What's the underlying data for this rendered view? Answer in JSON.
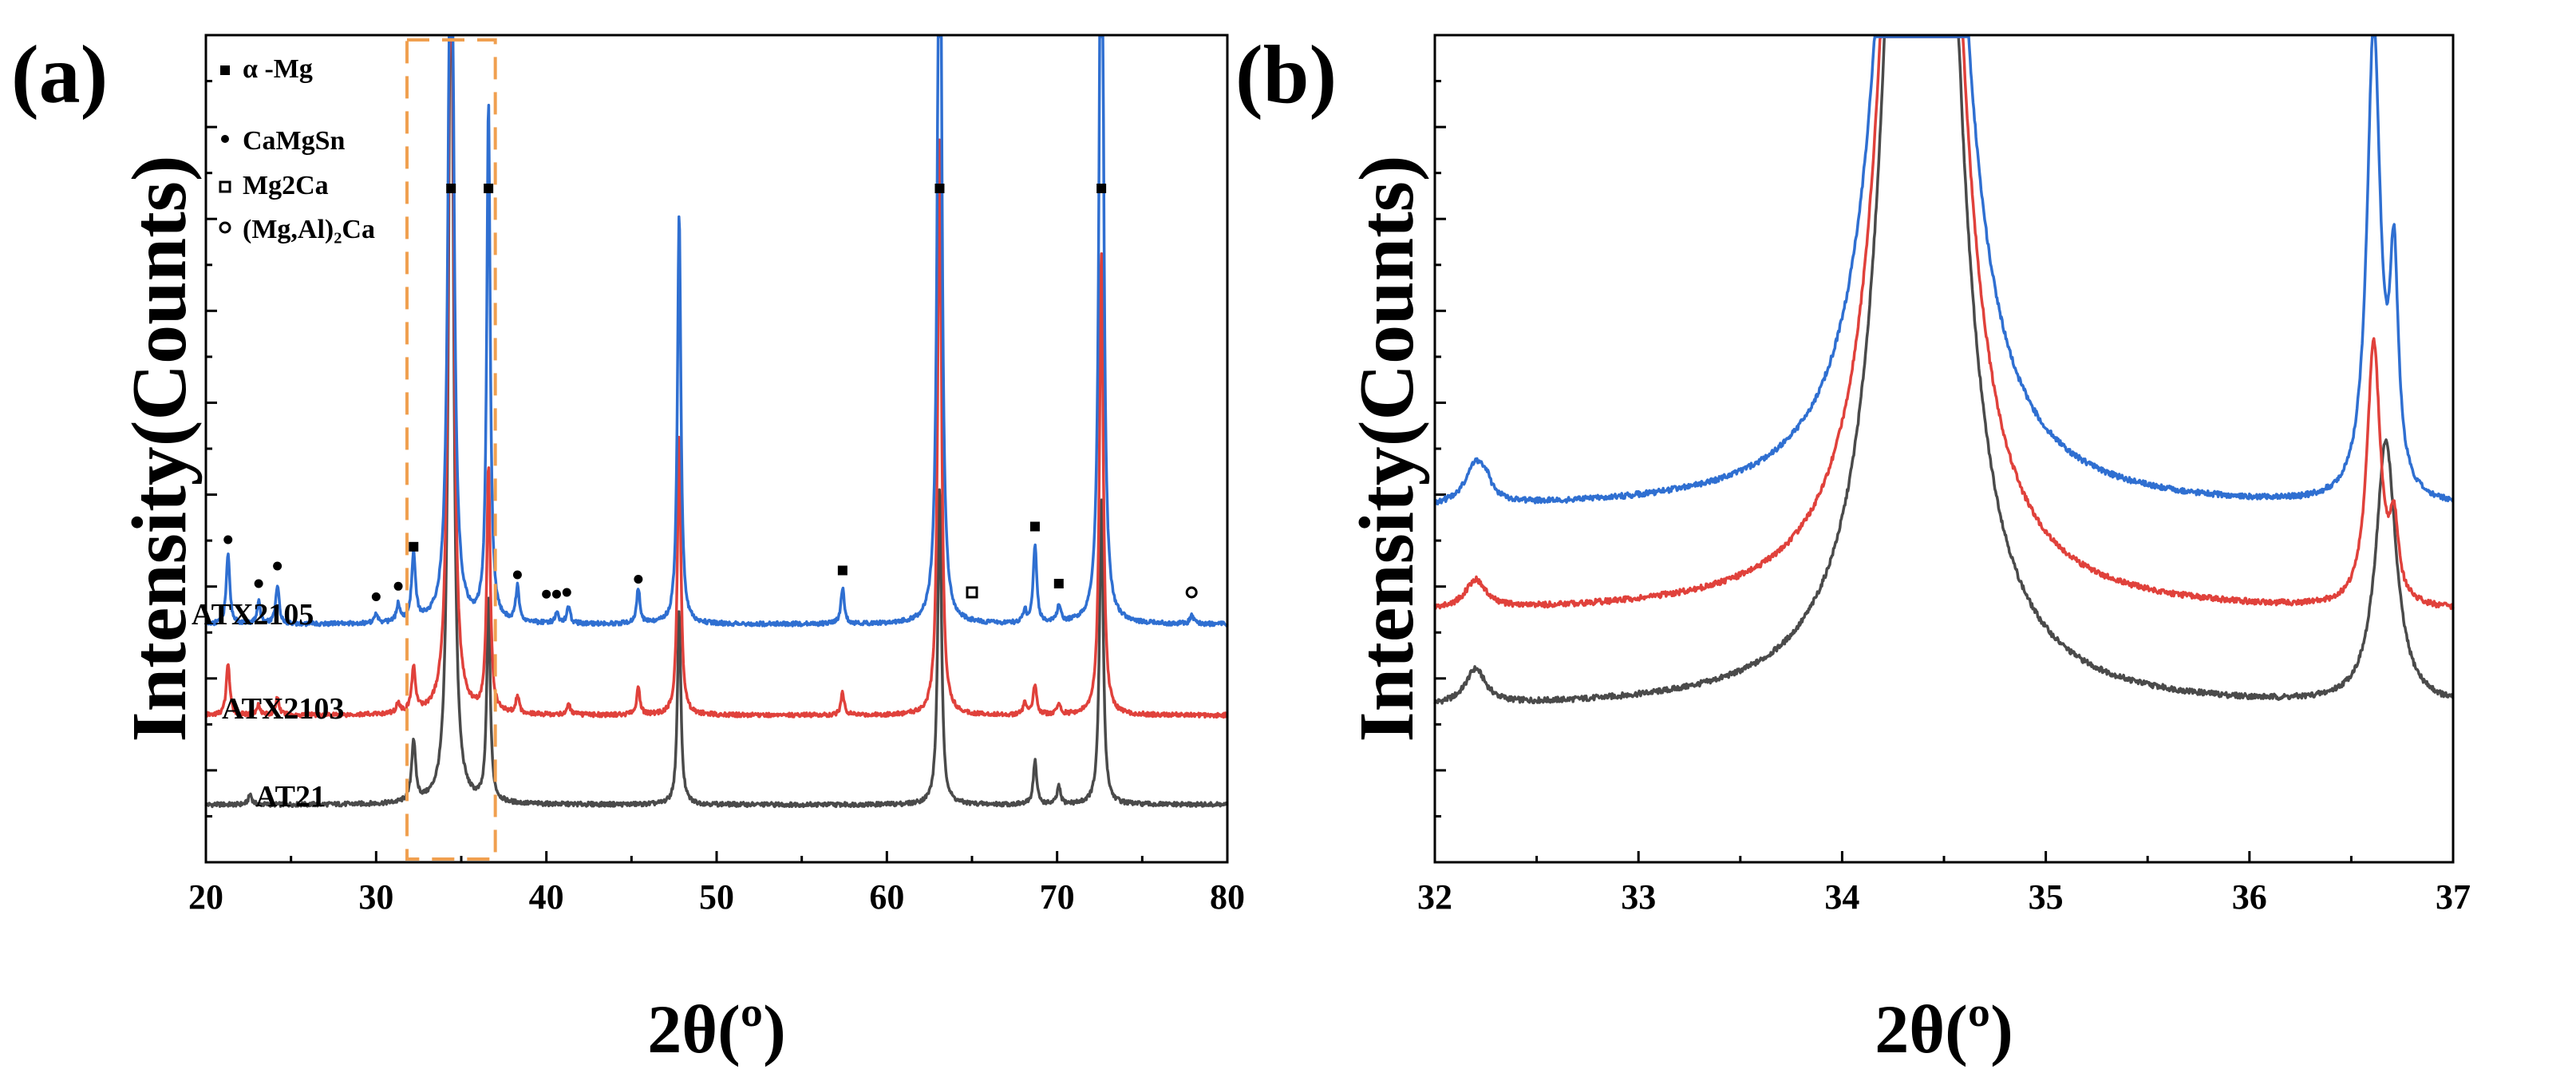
{
  "colors": {
    "AT21": "#4a4a4a",
    "ATX2103": "#e0413b",
    "ATX2105": "#2f6fd1",
    "highlight_box": "#f0a050",
    "marker": "#000000"
  },
  "chart_data": [
    {
      "id": "panel-a",
      "panel_label": "(a)",
      "type": "line",
      "xlabel": "2θ(º)",
      "ylabel": "Intensity(Counts)",
      "xlim": [
        20,
        80
      ],
      "xticks": [
        "20",
        "30",
        "40",
        "50",
        "60",
        "70",
        "80"
      ],
      "yticks_visible_labels": false,
      "legend": {
        "placement": "top-left",
        "entries": [
          {
            "marker": "filled-square",
            "label": "α -Mg"
          },
          {
            "marker": "filled-circle",
            "label": "CaMgSn"
          },
          {
            "marker": "open-square",
            "label": "Mg2Ca"
          },
          {
            "marker": "open-circle",
            "label": "(Mg,Al)₂Ca"
          }
        ]
      },
      "series": [
        {
          "name": "AT21",
          "label": "AT21",
          "color_key": "AT21",
          "offset": 0
        },
        {
          "name": "ATX2103",
          "label": "ATX2103",
          "color_key": "ATX2103",
          "offset": 1
        },
        {
          "name": "ATX2105",
          "label": "ATX2105",
          "color_key": "ATX2105",
          "offset": 2
        }
      ],
      "peaks": [
        {
          "x": 21.3,
          "h": [
            0,
            0.6,
            0.8
          ],
          "w": 0.12
        },
        {
          "x": 22.6,
          "h": [
            0.12,
            0,
            0
          ],
          "w": 0.12
        },
        {
          "x": 23.1,
          "h": [
            0,
            0.12,
            0.25
          ],
          "w": 0.12
        },
        {
          "x": 24.2,
          "h": [
            0,
            0.2,
            0.45
          ],
          "w": 0.12
        },
        {
          "x": 30.0,
          "h": [
            0,
            0,
            0.1
          ],
          "w": 0.12
        },
        {
          "x": 31.3,
          "h": [
            0,
            0.12,
            0.2
          ],
          "w": 0.12
        },
        {
          "x": 32.2,
          "h": [
            0.7,
            0.5,
            0.75
          ],
          "w": 0.14
        },
        {
          "x": 34.4,
          "h": [
            11,
            11,
            11
          ],
          "w": 0.16
        },
        {
          "x": 36.6,
          "h": [
            2.3,
            2.8,
            5.9
          ],
          "w": 0.12
        },
        {
          "x": 38.3,
          "h": [
            0,
            0.2,
            0.4
          ],
          "w": 0.12
        },
        {
          "x": 40.6,
          "h": [
            0,
            0,
            0.12
          ],
          "w": 0.12
        },
        {
          "x": 41.3,
          "h": [
            0,
            0.12,
            0.18
          ],
          "w": 0.12
        },
        {
          "x": 45.4,
          "h": [
            0,
            0.3,
            0.4
          ],
          "w": 0.12
        },
        {
          "x": 47.8,
          "h": [
            2.2,
            3.2,
            4.7
          ],
          "w": 0.12
        },
        {
          "x": 57.4,
          "h": [
            0,
            0.25,
            0.4
          ],
          "w": 0.12
        },
        {
          "x": 63.1,
          "h": [
            3.6,
            6.6,
            11
          ],
          "w": 0.13
        },
        {
          "x": 68.1,
          "h": [
            0,
            0.15,
            0.15
          ],
          "w": 0.1
        },
        {
          "x": 68.7,
          "h": [
            0.5,
            0.35,
            0.9
          ],
          "w": 0.12
        },
        {
          "x": 70.1,
          "h": [
            0.2,
            0.12,
            0.2
          ],
          "w": 0.12
        },
        {
          "x": 72.6,
          "h": [
            3.5,
            5.3,
            11
          ],
          "w": 0.13
        },
        {
          "x": 77.9,
          "h": [
            0,
            0,
            0.1
          ],
          "w": 0.12
        }
      ],
      "phase_markers": [
        {
          "x": 21.3,
          "symbol": "filled-circle",
          "level": 0.8
        },
        {
          "x": 23.1,
          "symbol": "filled-circle",
          "level": 0.3
        },
        {
          "x": 24.2,
          "symbol": "filled-circle",
          "level": 0.5
        },
        {
          "x": 30.0,
          "symbol": "filled-circle",
          "level": 0.15
        },
        {
          "x": 31.3,
          "symbol": "filled-circle",
          "level": 0.27
        },
        {
          "x": 32.2,
          "symbol": "filled-square",
          "level": 0.72
        },
        {
          "x": 34.4,
          "symbol": "filled-square",
          "level": 4.8
        },
        {
          "x": 36.6,
          "symbol": "filled-square",
          "level": 4.8
        },
        {
          "x": 38.3,
          "symbol": "filled-circle",
          "level": 0.4
        },
        {
          "x": 40.0,
          "symbol": "filled-circle",
          "level": 0.18
        },
        {
          "x": 40.6,
          "symbol": "filled-circle",
          "level": 0.18
        },
        {
          "x": 41.2,
          "symbol": "filled-circle",
          "level": 0.2
        },
        {
          "x": 45.4,
          "symbol": "filled-circle",
          "level": 0.35
        },
        {
          "x": 57.4,
          "symbol": "filled-square",
          "level": 0.45
        },
        {
          "x": 63.1,
          "symbol": "filled-square",
          "level": 4.8
        },
        {
          "x": 65.0,
          "symbol": "open-square",
          "level": 0.2
        },
        {
          "x": 68.7,
          "symbol": "filled-square",
          "level": 0.95
        },
        {
          "x": 70.1,
          "symbol": "filled-square",
          "level": 0.3
        },
        {
          "x": 72.6,
          "symbol": "filled-square",
          "level": 4.8
        },
        {
          "x": 77.9,
          "symbol": "open-circle",
          "level": 0.2
        }
      ],
      "highlight_range": [
        32,
        37
      ]
    },
    {
      "id": "panel-b",
      "panel_label": "(b)",
      "type": "line",
      "xlabel": "2θ(º)",
      "ylabel": "Intensity(Counts)",
      "xlim": [
        32,
        37
      ],
      "xticks": [
        "32",
        "33",
        "34",
        "35",
        "36",
        "37"
      ],
      "yticks_visible_labels": false,
      "series": [
        {
          "name": "AT21",
          "color_key": "AT21",
          "base": 0.95
        },
        {
          "name": "ATX2103",
          "color_key": "ATX2103",
          "base": 1.55
        },
        {
          "name": "ATX2105",
          "color_key": "ATX2105",
          "base": 2.2
        }
      ],
      "peaks": [
        {
          "x": 32.2,
          "h": [
            0.22,
            0.18,
            0.25
          ],
          "w": 0.06
        },
        {
          "x": 32.25,
          "h": [
            0,
            0,
            0.08
          ],
          "w": 0.03
        },
        {
          "x": 34.39,
          "h": [
            14,
            14,
            14
          ],
          "w": 0.12
        },
        {
          "x": 36.61,
          "h": [
            0,
            1.65,
            2.95
          ],
          "w": 0.04
        },
        {
          "x": 36.67,
          "h": [
            1.65,
            0,
            0
          ],
          "w": 0.06
        },
        {
          "x": 36.71,
          "h": [
            0,
            0.45,
            1.35
          ],
          "w": 0.025
        }
      ]
    }
  ]
}
